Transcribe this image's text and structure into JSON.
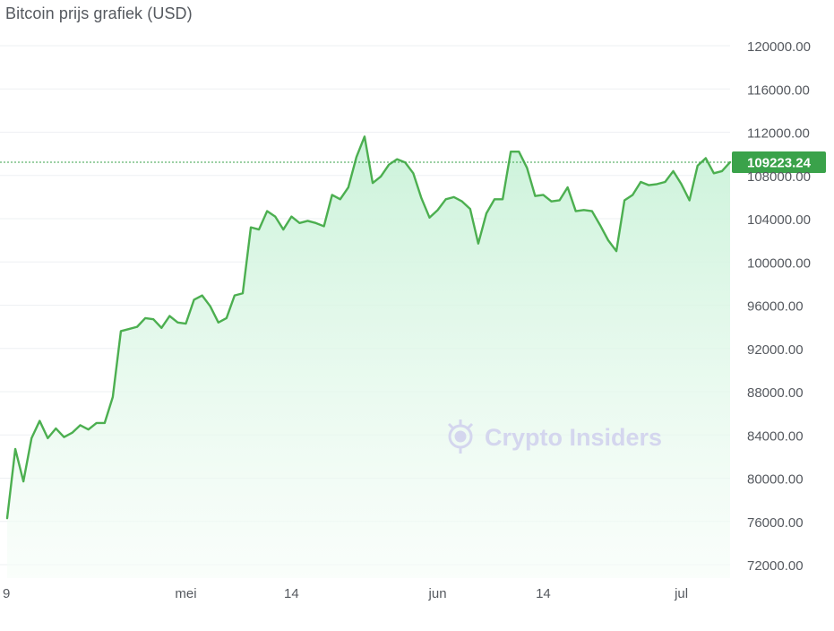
{
  "title": "Bitcoin prijs grafiek (USD)",
  "watermark": "Crypto Insiders",
  "chart_data": {
    "type": "area",
    "title": "Bitcoin prijs grafiek (USD)",
    "xlabel": "",
    "ylabel": "",
    "ylim": [
      72000,
      120000
    ],
    "y_ticks": [
      "120000.00",
      "116000.00",
      "112000.00",
      "108000.00",
      "104000.00",
      "100000.00",
      "96000.00",
      "92000.00",
      "88000.00",
      "84000.00",
      "80000.00",
      "76000.00",
      "72000.00"
    ],
    "x_tick_labels": [
      {
        "label": "9",
        "day": 0
      },
      {
        "label": "mei",
        "day": 22
      },
      {
        "label": "14",
        "day": 35
      },
      {
        "label": "jun",
        "day": 53
      },
      {
        "label": "14",
        "day": 66
      },
      {
        "label": "jul",
        "day": 83
      }
    ],
    "current_price": 109223.24,
    "current_price_label": "109223.24",
    "colors": {
      "line": "#4caf50",
      "area_top": "#c9f2d8",
      "area_bottom": "#f6fdf8",
      "badge": "#3aa24a",
      "grid": "#eef0f3"
    },
    "series": [
      {
        "values": [
          76300,
          82700,
          79700,
          83700,
          85300,
          83700,
          84600,
          83800,
          84200,
          84900,
          84500,
          85100,
          85100,
          87500,
          93600,
          93800,
          94000,
          94800,
          94700,
          93900,
          95000,
          94400,
          94300,
          96500,
          96900,
          95900,
          94400,
          94800,
          96900,
          97100,
          103200,
          103000,
          104700,
          104200,
          103000,
          104200,
          103600,
          103800,
          103600,
          103300,
          106200,
          105800,
          106900,
          109700,
          111600,
          107300,
          107900,
          109000,
          109500,
          109200,
          108200,
          105900,
          104100,
          104800,
          105800,
          106000,
          105600,
          104900,
          101700,
          104500,
          105800,
          105800,
          110200,
          110200,
          108700,
          106100,
          106200,
          105600,
          105700,
          106900,
          104700,
          104800,
          104700,
          103400,
          102000,
          101000,
          105700,
          106200,
          107400,
          107100,
          107200,
          107400,
          108400,
          107200,
          105700,
          108900,
          109600,
          108200,
          108400,
          109223.24
        ]
      }
    ]
  }
}
